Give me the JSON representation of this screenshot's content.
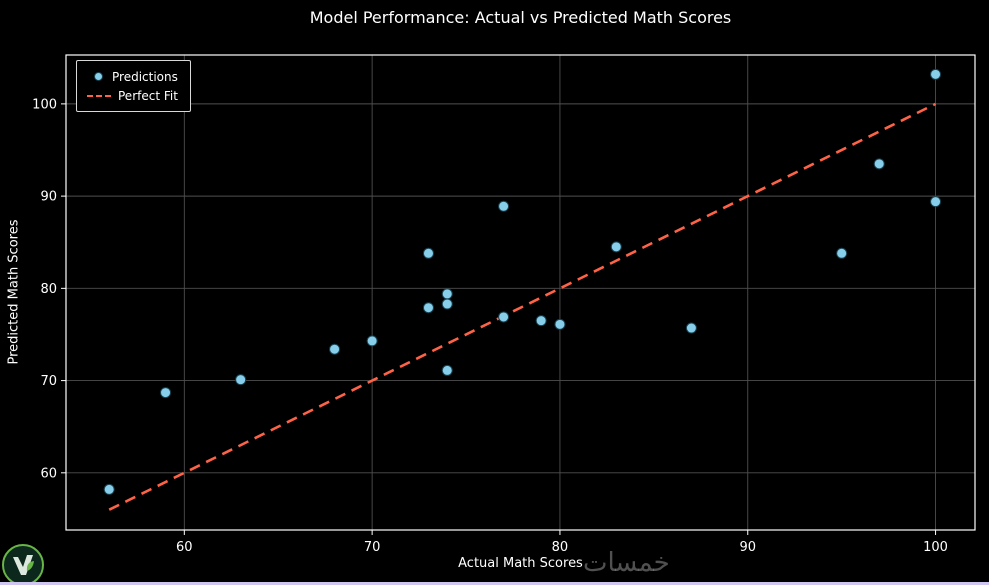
{
  "chart_data": {
    "type": "scatter",
    "title": "Model Performance: Actual vs Predicted Math Scores",
    "xlabel": "Actual Math Scores",
    "ylabel": "Predicted Math Scores",
    "xlim": [
      53.7,
      102.1
    ],
    "ylim": [
      53.8,
      105.3
    ],
    "xticks": [
      60,
      70,
      80,
      90,
      100
    ],
    "yticks": [
      60,
      70,
      80,
      90,
      100
    ],
    "grid": true,
    "legend": {
      "position": "upper-left",
      "entries": [
        {
          "label": "Predictions",
          "type": "marker"
        },
        {
          "label": "Perfect Fit",
          "type": "dashed-line"
        }
      ]
    },
    "series": [
      {
        "name": "Predictions",
        "type": "scatter",
        "marker_color": "#87CEEB",
        "marker_edge": "#17404f",
        "points": [
          [
            56,
            58.2
          ],
          [
            59,
            68.7
          ],
          [
            63,
            70.1
          ],
          [
            68,
            73.4
          ],
          [
            70,
            74.3
          ],
          [
            73,
            83.8
          ],
          [
            73,
            77.9
          ],
          [
            74,
            79.4
          ],
          [
            74,
            78.3
          ],
          [
            74,
            71.1
          ],
          [
            77,
            88.9
          ],
          [
            77,
            76.9
          ],
          [
            79,
            76.5
          ],
          [
            80,
            76.1
          ],
          [
            83,
            84.5
          ],
          [
            87,
            75.7
          ],
          [
            95,
            83.8
          ],
          [
            97,
            93.5
          ],
          [
            100,
            103.2
          ],
          [
            100,
            89.4
          ]
        ]
      },
      {
        "name": "Perfect Fit",
        "type": "line",
        "style": "dashed",
        "color": "#FF6347",
        "points": [
          [
            56,
            56
          ],
          [
            100,
            100
          ]
        ]
      }
    ]
  },
  "colors": {
    "background": "#000000",
    "text": "#ffffff",
    "grid": "#4f4f4f",
    "axis": "#ffffff",
    "scatter_fill": "#87CEEB",
    "scatter_edge": "#17404f",
    "fit_line": "#FF6347",
    "bottom_strip": "#cfc6f2",
    "logo_green": "#6fbf4a"
  },
  "watermark": {
    "text": "خمسات"
  }
}
